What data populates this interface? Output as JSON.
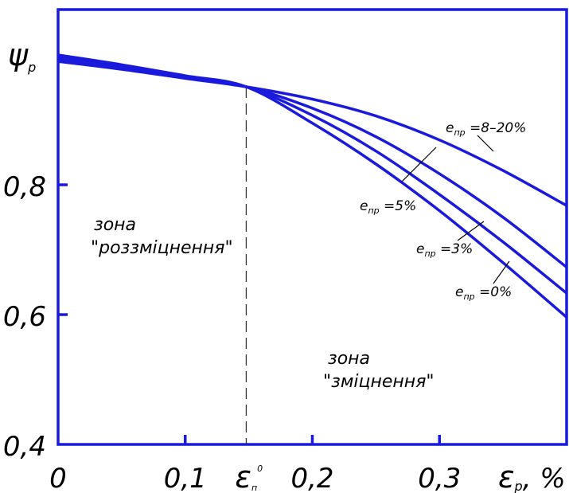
{
  "chart_data": {
    "type": "line",
    "ylabel": {
      "main": "ψ",
      "sub": "p"
    },
    "xlabel": {
      "main": "ε",
      "sub": "p",
      "unit": ", %"
    },
    "xlim": [
      0,
      0.4
    ],
    "ylim": [
      0.4,
      1.07
    ],
    "x_ticks": [
      {
        "value": 0,
        "label": "0"
      },
      {
        "value": 0.1,
        "label": "0,1"
      },
      {
        "value": 0.2,
        "label": "0,2"
      },
      {
        "value": 0.3,
        "label": "0,3"
      }
    ],
    "y_ticks": [
      {
        "value": 0.4,
        "label": "0,4"
      },
      {
        "value": 0.6,
        "label": "0,6"
      },
      {
        "value": 0.8,
        "label": "0,8"
      }
    ],
    "threshold": {
      "x": 0.148,
      "label": {
        "main": "ε",
        "sub": "п",
        "sup": "0"
      },
      "style": "dashed"
    },
    "zones": [
      {
        "name": "zone-softening",
        "line1": "зона",
        "line2": "\"роззміцнення\""
      },
      {
        "name": "zone-hardening",
        "line1": "зона",
        "line2": "\"зміцнення\""
      }
    ],
    "series": [
      {
        "name": "e пр =8–20%",
        "label": {
          "main": "e",
          "sub": "пр",
          "rest": " =8–20%"
        },
        "points": [
          [
            0,
            0.99
          ],
          [
            0.05,
            0.978
          ],
          [
            0.1,
            0.964
          ],
          [
            0.148,
            0.951
          ],
          [
            0.2,
            0.932
          ],
          [
            0.25,
            0.906
          ],
          [
            0.3,
            0.869
          ],
          [
            0.35,
            0.822
          ],
          [
            0.4,
            0.768
          ]
        ]
      },
      {
        "name": "e пр =5%",
        "label": {
          "main": "e",
          "sub": "пр",
          "rest": " =5%"
        },
        "points": [
          [
            0,
            0.994
          ],
          [
            0.05,
            0.981
          ],
          [
            0.1,
            0.966
          ],
          [
            0.148,
            0.951
          ],
          [
            0.2,
            0.918
          ],
          [
            0.25,
            0.874
          ],
          [
            0.3,
            0.817
          ],
          [
            0.35,
            0.75
          ],
          [
            0.4,
            0.673
          ]
        ]
      },
      {
        "name": "e пр =3%",
        "label": {
          "main": "e",
          "sub": "пр",
          "rest": " =3%"
        },
        "points": [
          [
            0,
            0.997
          ],
          [
            0.05,
            0.983
          ],
          [
            0.1,
            0.967
          ],
          [
            0.148,
            0.951
          ],
          [
            0.2,
            0.907
          ],
          [
            0.25,
            0.852
          ],
          [
            0.3,
            0.785
          ],
          [
            0.35,
            0.712
          ],
          [
            0.4,
            0.633
          ]
        ]
      },
      {
        "name": "e пр =0%",
        "label": {
          "main": "e",
          "sub": "пр",
          "rest": " =0%"
        },
        "points": [
          [
            0,
            1.0
          ],
          [
            0.05,
            0.985
          ],
          [
            0.1,
            0.968
          ],
          [
            0.148,
            0.951
          ],
          [
            0.2,
            0.895
          ],
          [
            0.25,
            0.832
          ],
          [
            0.3,
            0.76
          ],
          [
            0.35,
            0.68
          ],
          [
            0.4,
            0.596
          ]
        ]
      }
    ],
    "grid": false,
    "colors": {
      "line": "#1a1adc",
      "axis": "#1a1adc",
      "text": "#000000",
      "dashed": "#333333"
    }
  }
}
